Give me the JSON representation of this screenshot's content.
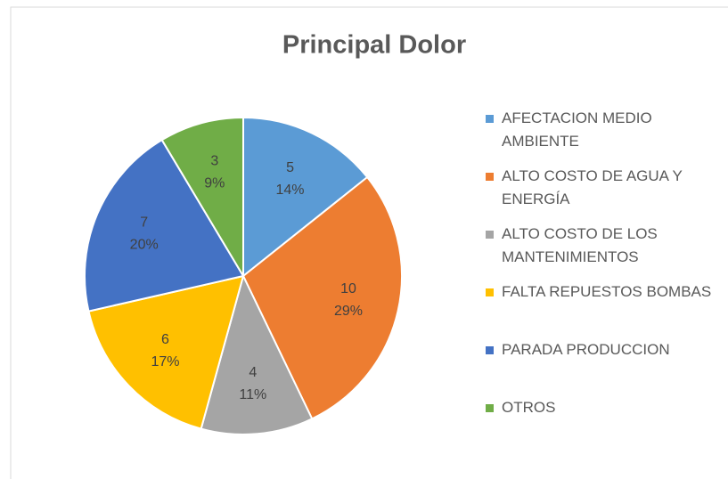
{
  "chart_data": {
    "type": "pie",
    "title": "Principal Dolor",
    "categories": [
      "AFECTACION MEDIO AMBIENTE",
      "ALTO COSTO DE AGUA Y ENERGÍA",
      "ALTO COSTO DE LOS MANTENIMIENTOS",
      "FALTA REPUESTOS BOMBAS",
      "PARADA PRODUCCION",
      "OTROS"
    ],
    "values": [
      5,
      10,
      4,
      6,
      7,
      3
    ],
    "percent_labels": [
      "14%",
      "29%",
      "11%",
      "17%",
      "20%",
      "9%"
    ],
    "colors": [
      "#5b9bd5",
      "#ed7d31",
      "#a5a5a5",
      "#ffc000",
      "#4472c4",
      "#70ad47"
    ],
    "legend": "right"
  }
}
